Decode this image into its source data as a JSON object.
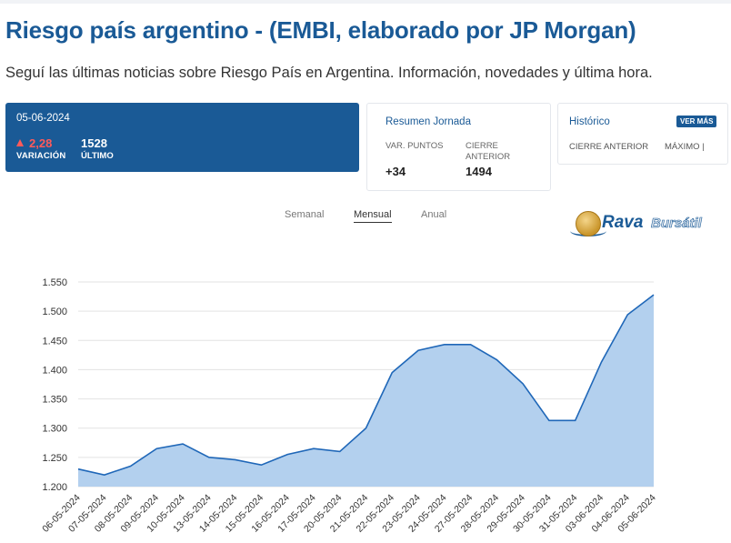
{
  "page": {
    "title": "Riesgo país argentino - (EMBI, elaborado por JP Morgan)",
    "subtitle": "Seguí las últimas noticias sobre Riesgo País en Argentina. Información, novedades y última hora."
  },
  "summary": {
    "date": "05-06-2024",
    "variation_value": "2,28",
    "variation_label": "VARIACIÓN",
    "last_value": "1528",
    "last_label": "ÚLTIMO"
  },
  "jornada": {
    "title": "Resumen Jornada",
    "var_label": "VAR. PUNTOS",
    "var_value": "+34",
    "cierre_label": "CIERRE ANTERIOR",
    "cierre_value": "1494"
  },
  "historico": {
    "title": "Histórico",
    "button": "VER MÁS",
    "col1": "CIERRE ANTERIOR",
    "col2": "MÁXIMO |"
  },
  "tabs": [
    {
      "label": "Semanal",
      "active": false
    },
    {
      "label": "Mensual",
      "active": true
    },
    {
      "label": "Anual",
      "active": false
    }
  ],
  "logo": {
    "word1": "Rava",
    "word2": "Bursátil"
  },
  "colors": {
    "primary": "#1a5a96",
    "negative": "#ff5a5a",
    "area_fill": "#b3d0ee",
    "line": "#1f67b8"
  },
  "chart_data": {
    "type": "area",
    "categories": [
      "06-05-2024",
      "07-05-2024",
      "08-05-2024",
      "09-05-2024",
      "10-05-2024",
      "13-05-2024",
      "14-05-2024",
      "15-05-2024",
      "16-05-2024",
      "17-05-2024",
      "20-05-2024",
      "21-05-2024",
      "22-05-2024",
      "23-05-2024",
      "24-05-2024",
      "27-05-2024",
      "28-05-2024",
      "29-05-2024",
      "30-05-2024",
      "31-05-2024",
      "03-06-2024",
      "04-06-2024",
      "05-06-2024"
    ],
    "values": [
      1230,
      1220,
      1235,
      1265,
      1273,
      1250,
      1246,
      1237,
      1255,
      1265,
      1260,
      1300,
      1395,
      1433,
      1443,
      1443,
      1417,
      1376,
      1313,
      1313,
      1413,
      1494,
      1528
    ],
    "yticks": [
      "1.200",
      "1.250",
      "1.300",
      "1.350",
      "1.400",
      "1.450",
      "1.500",
      "1.550"
    ],
    "ylim": [
      1200,
      1550
    ],
    "grid": true,
    "xlabel": "",
    "ylabel": ""
  }
}
